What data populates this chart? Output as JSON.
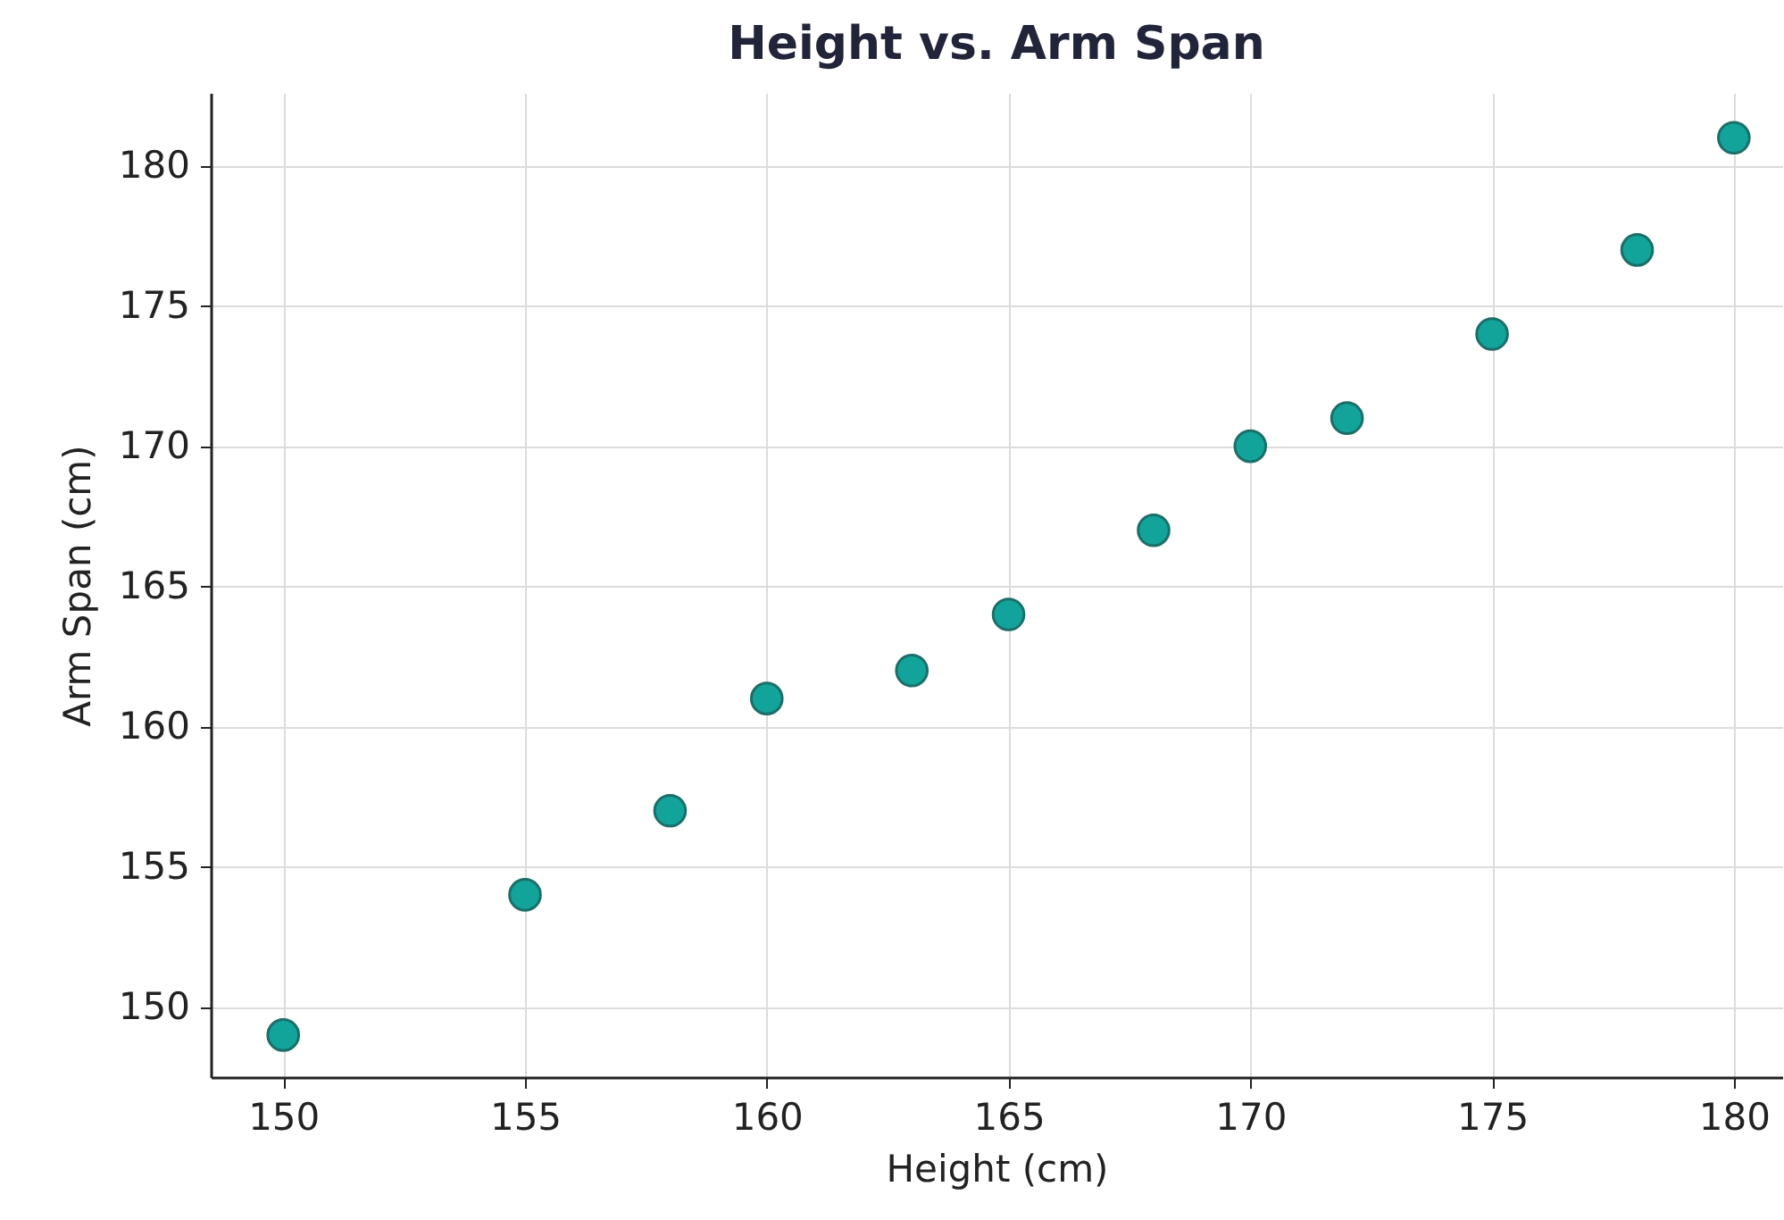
{
  "chart_data": {
    "type": "scatter",
    "title": "Height vs. Arm Span",
    "xlabel": "Height (cm)",
    "ylabel": "Arm Span (cm)",
    "x": [
      150,
      155,
      158,
      160,
      163,
      165,
      168,
      170,
      172,
      175,
      178,
      180
    ],
    "series": [
      {
        "color": "#12a39a",
        "values": [
          149,
          154,
          157,
          161,
          162,
          164,
          167,
          170,
          171,
          174,
          177,
          181
        ]
      }
    ],
    "xlim": [
      148.5,
      181
    ],
    "ylim": [
      147.5,
      182.6
    ],
    "xticks": [
      150,
      155,
      160,
      165,
      170,
      175,
      180
    ],
    "yticks": [
      150,
      155,
      160,
      165,
      170,
      175,
      180
    ],
    "grid": true,
    "marker": "circle"
  }
}
